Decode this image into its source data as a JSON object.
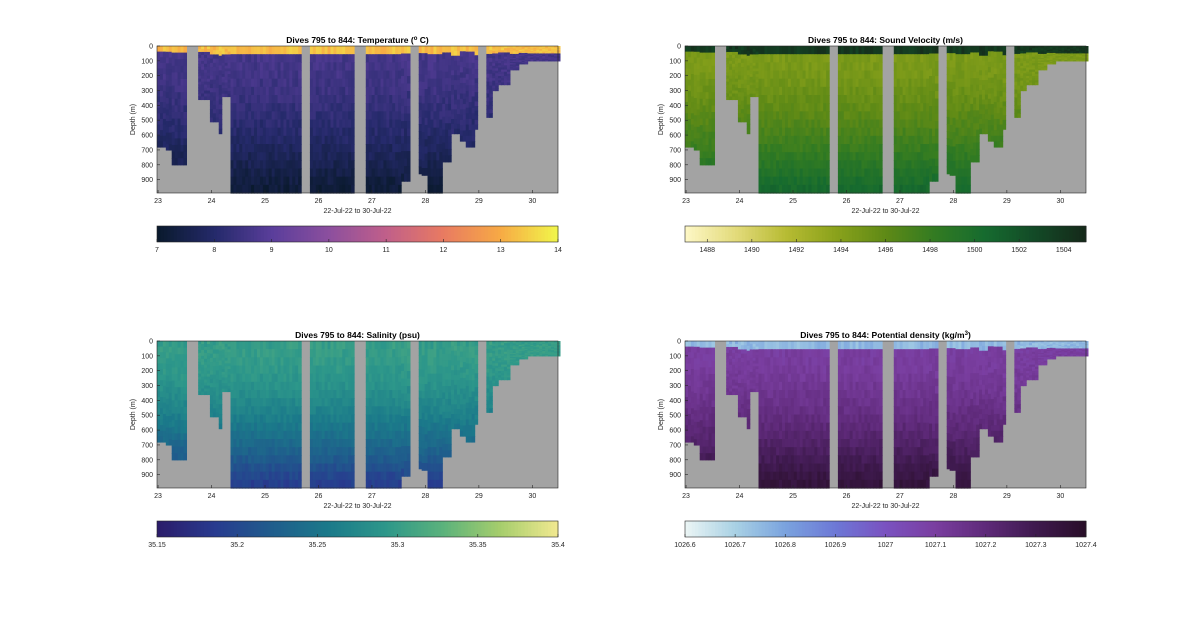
{
  "chart_data": [
    {
      "id": "temp",
      "type": "heatmap",
      "title": "Dives 795 to 844: Temperature (",
      "title_sup": "o",
      "title_end": " C)",
      "ylabel": "Depth (m)",
      "xlabel": "22-Jul-22 to 30-Jul-22",
      "x_ticks": [
        "23",
        "24",
        "25",
        "26",
        "27",
        "28",
        "29",
        "30"
      ],
      "y_ticks": [
        "0",
        "100",
        "200",
        "300",
        "400",
        "500",
        "600",
        "700",
        "800",
        "900"
      ],
      "xlim": [
        22.98,
        30.48
      ],
      "ylim": [
        0,
        990
      ],
      "colorbar": {
        "min": 7,
        "max": 14,
        "ticks": [
          "7",
          "8",
          "9",
          "10",
          "11",
          "12",
          "13",
          "14"
        ],
        "colors": [
          "#0a1a2e",
          "#252a6b",
          "#5a3e9b",
          "#8c4f9e",
          "#c05f8a",
          "#e87a62",
          "#f7a945",
          "#f1f44a"
        ]
      },
      "surface_value": 13.3,
      "bottom_value": 7.2,
      "deep_value": 8.6
    },
    {
      "id": "sv",
      "type": "heatmap",
      "title": "Dives 795 to 844: Sound Velocity (m/s)",
      "title_sup": "",
      "title_end": "",
      "ylabel": "Depth (m)",
      "xlabel": "22-Jul-22 to 30-Jul-22",
      "x_ticks": [
        "23",
        "24",
        "25",
        "26",
        "27",
        "28",
        "29",
        "30"
      ],
      "y_ticks": [
        "0",
        "100",
        "200",
        "300",
        "400",
        "500",
        "600",
        "700",
        "800",
        "900"
      ],
      "xlim": [
        22.98,
        30.48
      ],
      "ylim": [
        0,
        990
      ],
      "colorbar": {
        "min": 1487,
        "max": 1505,
        "ticks": [
          "1488",
          "1490",
          "1492",
          "1494",
          "1496",
          "1498",
          "1500",
          "1502",
          "1504"
        ],
        "tick_values": [
          1488,
          1490,
          1492,
          1494,
          1496,
          1498,
          1500,
          1502,
          1504
        ],
        "colors": [
          "#fdf7c4",
          "#e2da7a",
          "#b7bb33",
          "#8aa21b",
          "#5f8a16",
          "#327b22",
          "#166b2f",
          "#134a27",
          "#152a1a"
        ]
      },
      "surface_value": 1504,
      "bottom_value": 1500.5,
      "deep_value": 1494.5
    },
    {
      "id": "sal",
      "type": "heatmap",
      "title": "Dives 795 to 844: Salinity (psu)",
      "title_sup": "",
      "title_end": "",
      "ylabel": "Depth (m)",
      "xlabel": "22-Jul-22 to 30-Jul-22",
      "x_ticks": [
        "23",
        "24",
        "25",
        "26",
        "27",
        "28",
        "29",
        "30"
      ],
      "y_ticks": [
        "0",
        "100",
        "200",
        "300",
        "400",
        "500",
        "600",
        "700",
        "800",
        "900"
      ],
      "xlim": [
        22.98,
        30.48
      ],
      "ylim": [
        0,
        990
      ],
      "colorbar": {
        "min": 35.15,
        "max": 35.4,
        "ticks": [
          "35.15",
          "35.2",
          "35.25",
          "35.3",
          "35.35",
          "35.4"
        ],
        "colors": [
          "#2b1d6b",
          "#283b8f",
          "#1f5d8c",
          "#1b7a8a",
          "#2d978a",
          "#5bb27c",
          "#a5cd6c",
          "#efe88f"
        ]
      },
      "surface_value": 35.3,
      "bottom_value": 35.19,
      "deep_value": 35.3
    },
    {
      "id": "dens",
      "type": "heatmap",
      "title": "Dives 795 to 844: Potential density (kg/m",
      "title_sup": "3",
      "title_end": ")",
      "ylabel": "Depth (m)",
      "xlabel": "22-Jul-22 to 30-Jul-22",
      "x_ticks": [
        "23",
        "24",
        "25",
        "26",
        "27",
        "28",
        "29",
        "30"
      ],
      "y_ticks": [
        "0",
        "100",
        "200",
        "300",
        "400",
        "500",
        "600",
        "700",
        "800",
        "900"
      ],
      "xlim": [
        22.98,
        30.48
      ],
      "ylim": [
        0,
        990
      ],
      "colorbar": {
        "min": 1026.6,
        "max": 1027.4,
        "ticks": [
          "1026.6",
          "1026.7",
          "1026.8",
          "1026.9",
          "1027",
          "1027.1",
          "1027.2",
          "1027.3",
          "1027.4"
        ],
        "colors": [
          "#e9f4f4",
          "#a7d0e4",
          "#7aa2de",
          "#6d78d6",
          "#7a52c0",
          "#7a3ea0",
          "#5f2a7a",
          "#3f1a4f",
          "#2a0f2a"
        ]
      },
      "surface_value": 1026.75,
      "bottom_value": 1027.35,
      "deep_value": 1027.1
    }
  ]
}
